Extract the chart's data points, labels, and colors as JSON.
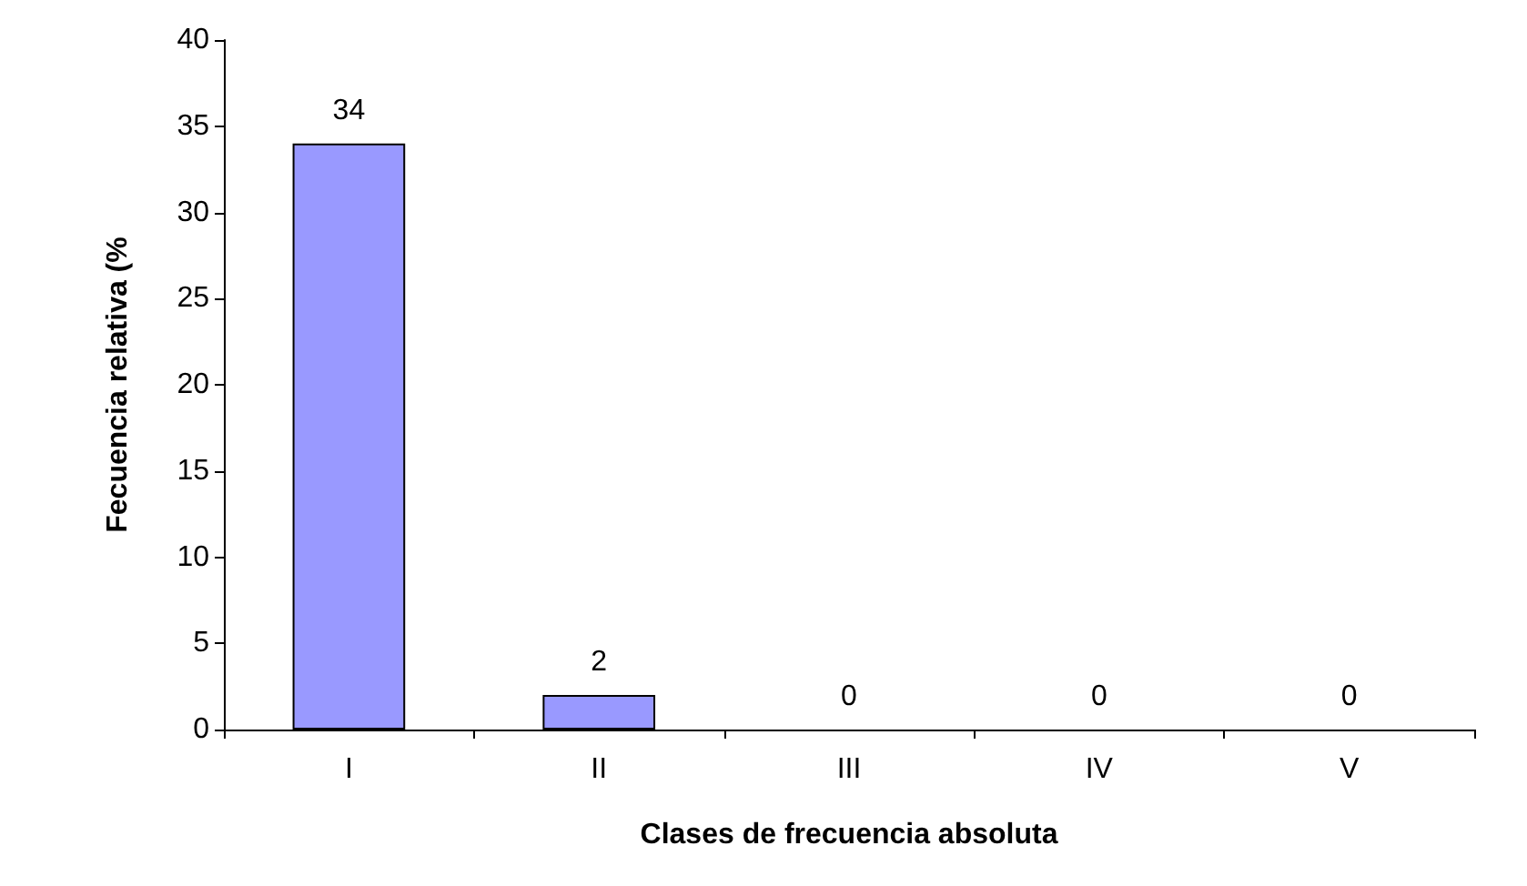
{
  "chart_data": {
    "type": "bar",
    "xlabel": "Clases de frecuencia absoluta",
    "ylabel": "Fecuencia relativa (%",
    "categories": [
      "I",
      "II",
      "III",
      "IV",
      "V"
    ],
    "values": [
      34,
      2,
      0,
      0,
      0
    ],
    "color": "#9999ff",
    "ylim": [
      0,
      40
    ],
    "yticks": [
      0,
      5,
      10,
      15,
      20,
      25,
      30,
      35,
      40
    ],
    "grid": false,
    "data_labels": true
  }
}
